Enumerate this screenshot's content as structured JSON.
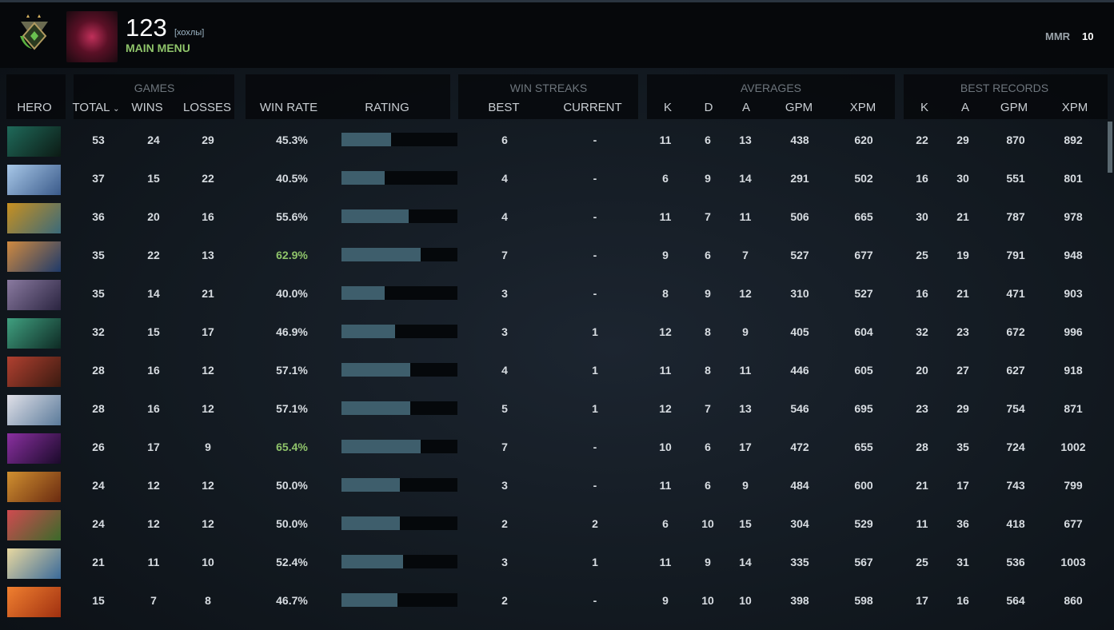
{
  "header": {
    "player_name": "123",
    "tag": "[хохлы]",
    "main_menu": "MAIN MENU",
    "mmr_label": "MMR",
    "mmr_value": "10"
  },
  "groups": {
    "games": "GAMES",
    "win_streaks": "WIN STREAKS",
    "averages": "AVERAGES",
    "best_records": "BEST RECORDS"
  },
  "columns": {
    "hero": "HERO",
    "total": "TOTAL",
    "wins": "WINS",
    "losses": "LOSSES",
    "win_rate": "WIN RATE",
    "rating": "RATING",
    "best": "BEST",
    "current": "CURRENT",
    "avg_k": "K",
    "avg_d": "D",
    "avg_a": "A",
    "avg_gpm": "GPM",
    "avg_xpm": "XPM",
    "best_k": "K",
    "best_a": "A",
    "best_gpm": "GPM",
    "best_xpm": "XPM"
  },
  "sort_icon": "chevron-down-icon",
  "colors": {
    "accent_green": "#8fc46a",
    "rating_bar": "#3e5e6c"
  },
  "rows": [
    {
      "icon_colors": [
        "#1f6a5a",
        "#0c1a14"
      ],
      "total": "53",
      "wins": "24",
      "losses": "29",
      "win_rate": "45.3%",
      "rating": 0.43,
      "best": "6",
      "current": "-",
      "k": "11",
      "d": "6",
      "a": "13",
      "gpm": "438",
      "xpm": "620",
      "bk": "22",
      "ba": "29",
      "bgpm": "870",
      "bxpm": "892"
    },
    {
      "icon_colors": [
        "#a8c8e8",
        "#3a5a8a"
      ],
      "total": "37",
      "wins": "15",
      "losses": "22",
      "win_rate": "40.5%",
      "rating": 0.37,
      "best": "4",
      "current": "-",
      "k": "6",
      "d": "9",
      "a": "14",
      "gpm": "291",
      "xpm": "502",
      "bk": "16",
      "ba": "30",
      "bgpm": "551",
      "bxpm": "801"
    },
    {
      "icon_colors": [
        "#c89020",
        "#3a6a7a"
      ],
      "total": "36",
      "wins": "20",
      "losses": "16",
      "win_rate": "55.6%",
      "rating": 0.58,
      "best": "4",
      "current": "-",
      "k": "11",
      "d": "7",
      "a": "11",
      "gpm": "506",
      "xpm": "665",
      "bk": "30",
      "ba": "21",
      "bgpm": "787",
      "bxpm": "978"
    },
    {
      "icon_colors": [
        "#d08a40",
        "#1e3a6a"
      ],
      "total": "35",
      "wins": "22",
      "losses": "13",
      "win_rate": "62.9%",
      "rating": 0.68,
      "best": "7",
      "current": "-",
      "k": "9",
      "d": "6",
      "a": "7",
      "gpm": "527",
      "xpm": "677",
      "bk": "25",
      "ba": "19",
      "bgpm": "791",
      "bxpm": "948"
    },
    {
      "icon_colors": [
        "#8a7aa0",
        "#2a2440"
      ],
      "total": "35",
      "wins": "14",
      "losses": "21",
      "win_rate": "40.0%",
      "rating": 0.37,
      "best": "3",
      "current": "-",
      "k": "8",
      "d": "9",
      "a": "12",
      "gpm": "310",
      "xpm": "527",
      "bk": "16",
      "ba": "21",
      "bgpm": "471",
      "bxpm": "903"
    },
    {
      "icon_colors": [
        "#40a080",
        "#0e2a24"
      ],
      "total": "32",
      "wins": "15",
      "losses": "17",
      "win_rate": "46.9%",
      "rating": 0.46,
      "best": "3",
      "current": "1",
      "k": "12",
      "d": "8",
      "a": "9",
      "gpm": "405",
      "xpm": "604",
      "bk": "32",
      "ba": "23",
      "bgpm": "672",
      "bxpm": "996"
    },
    {
      "icon_colors": [
        "#b04030",
        "#3a1a10"
      ],
      "total": "28",
      "wins": "16",
      "losses": "12",
      "win_rate": "57.1%",
      "rating": 0.59,
      "best": "4",
      "current": "1",
      "k": "11",
      "d": "8",
      "a": "11",
      "gpm": "446",
      "xpm": "605",
      "bk": "20",
      "ba": "27",
      "bgpm": "627",
      "bxpm": "918"
    },
    {
      "icon_colors": [
        "#e0e0e8",
        "#5a7a9a"
      ],
      "total": "28",
      "wins": "16",
      "losses": "12",
      "win_rate": "57.1%",
      "rating": 0.59,
      "best": "5",
      "current": "1",
      "k": "12",
      "d": "7",
      "a": "13",
      "gpm": "546",
      "xpm": "695",
      "bk": "23",
      "ba": "29",
      "bgpm": "754",
      "bxpm": "871"
    },
    {
      "icon_colors": [
        "#8a30a0",
        "#1a0a2a"
      ],
      "total": "26",
      "wins": "17",
      "losses": "9",
      "win_rate": "65.4%",
      "rating": 0.68,
      "best": "7",
      "current": "-",
      "k": "10",
      "d": "6",
      "a": "17",
      "gpm": "472",
      "xpm": "655",
      "bk": "28",
      "ba": "35",
      "bgpm": "724",
      "bxpm": "1002"
    },
    {
      "icon_colors": [
        "#d09030",
        "#6a2a10"
      ],
      "total": "24",
      "wins": "12",
      "losses": "12",
      "win_rate": "50.0%",
      "rating": 0.5,
      "best": "3",
      "current": "-",
      "k": "11",
      "d": "6",
      "a": "9",
      "gpm": "484",
      "xpm": "600",
      "bk": "21",
      "ba": "17",
      "bgpm": "743",
      "bxpm": "799"
    },
    {
      "icon_colors": [
        "#d04a50",
        "#3a6a2a"
      ],
      "total": "24",
      "wins": "12",
      "losses": "12",
      "win_rate": "50.0%",
      "rating": 0.5,
      "best": "2",
      "current": "2",
      "k": "6",
      "d": "10",
      "a": "15",
      "gpm": "304",
      "xpm": "529",
      "bk": "11",
      "ba": "36",
      "bgpm": "418",
      "bxpm": "677"
    },
    {
      "icon_colors": [
        "#e8d8a0",
        "#3a6a9a"
      ],
      "total": "21",
      "wins": "11",
      "losses": "10",
      "win_rate": "52.4%",
      "rating": 0.53,
      "best": "3",
      "current": "1",
      "k": "11",
      "d": "9",
      "a": "14",
      "gpm": "335",
      "xpm": "567",
      "bk": "25",
      "ba": "31",
      "bgpm": "536",
      "bxpm": "1003"
    },
    {
      "icon_colors": [
        "#f08030",
        "#a03010"
      ],
      "total": "15",
      "wins": "7",
      "losses": "8",
      "win_rate": "46.7%",
      "rating": 0.48,
      "best": "2",
      "current": "-",
      "k": "9",
      "d": "10",
      "a": "10",
      "gpm": "398",
      "xpm": "598",
      "bk": "17",
      "ba": "16",
      "bgpm": "564",
      "bxpm": "860"
    }
  ]
}
